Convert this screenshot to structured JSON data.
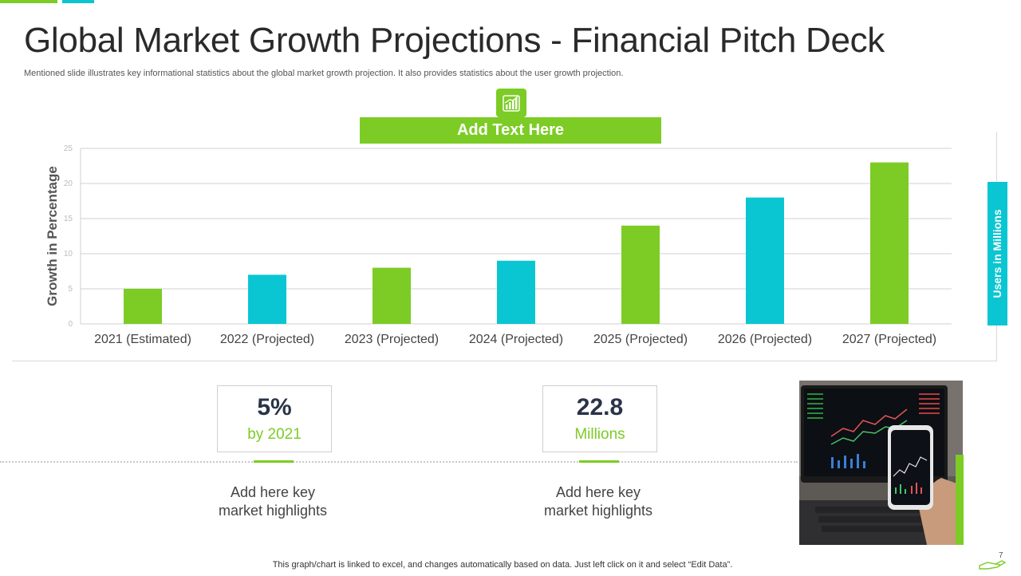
{
  "colors": {
    "green": "#7ccc25",
    "cyan": "#0ac6d2",
    "grid": "#d9d9d9",
    "title": "#2a2a2a",
    "stat": "#2a3447"
  },
  "slide": {
    "title": "Global Market Growth Projections - Financial Pitch Deck",
    "subtitle": "Mentioned slide illustrates key informational statistics about the global market growth projection. It also provides statistics about the user growth projection.",
    "banner": "Add Text Here",
    "side_tab": "Users in Millions",
    "footer_note": "This graph/chart is linked to excel,  and changes automatically based on data. Just left click on it and select “Edit Data”.",
    "page_number": "7"
  },
  "icons": {
    "chart_icon": "growth-chart-icon",
    "footer_icon": "hand-icon",
    "photo": "trading-phone-photo"
  },
  "stats": [
    {
      "value": "5%",
      "unit": "by 2021",
      "highlight_line1": "Add here key",
      "highlight_line2": "market highlights"
    },
    {
      "value": "22.8",
      "unit": "Millions",
      "highlight_line1": "Add here key",
      "highlight_line2": "market highlights"
    }
  ],
  "chart_data": {
    "type": "bar",
    "title": "",
    "xlabel": "",
    "ylabel": "Growth in Percentage",
    "ylim": [
      0,
      25
    ],
    "yticks": [
      "0",
      "5",
      "10",
      "15",
      "20",
      "25"
    ],
    "grid": true,
    "categories": [
      "2021 (Estimated)",
      "2022 (Projected)",
      "2023 (Projected)",
      "2024 (Projected)",
      "2025 (Projected)",
      "2026 (Projected)",
      "2027 (Projected)"
    ],
    "values": [
      5,
      7,
      8,
      9,
      14,
      18,
      23
    ],
    "bar_colors": [
      "#7ccc25",
      "#0ac6d2",
      "#7ccc25",
      "#0ac6d2",
      "#7ccc25",
      "#0ac6d2",
      "#7ccc25"
    ]
  }
}
